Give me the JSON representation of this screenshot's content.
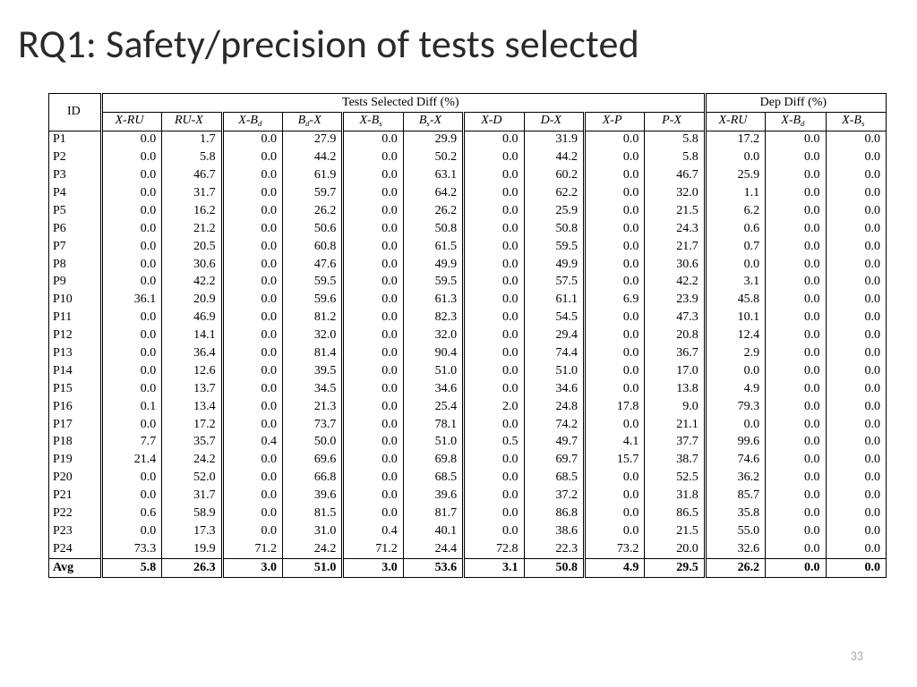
{
  "title": "RQ1: Safety/precision of tests selected",
  "page_number": "33",
  "table": {
    "type": "table",
    "header_group_1": "Tests Selected Diff (%)",
    "header_group_2": "Dep Diff (%)",
    "id_label": "ID",
    "avg_label": "Avg",
    "columns_tests": [
      "X-RU",
      "RU-X",
      "X-B_d",
      "B_d-X",
      "X-B_s",
      "B_s-X",
      "X-D",
      "D-X",
      "X-P",
      "P-X"
    ],
    "columns_dep": [
      "X-RU",
      "X-B_d",
      "X-B_s"
    ],
    "rows": [
      {
        "id": "P1",
        "v": [
          "0.0",
          "1.7",
          "0.0",
          "27.9",
          "0.0",
          "29.9",
          "0.0",
          "31.9",
          "0.0",
          "5.8",
          "17.2",
          "0.0",
          "0.0"
        ]
      },
      {
        "id": "P2",
        "v": [
          "0.0",
          "5.8",
          "0.0",
          "44.2",
          "0.0",
          "50.2",
          "0.0",
          "44.2",
          "0.0",
          "5.8",
          "0.0",
          "0.0",
          "0.0"
        ]
      },
      {
        "id": "P3",
        "v": [
          "0.0",
          "46.7",
          "0.0",
          "61.9",
          "0.0",
          "63.1",
          "0.0",
          "60.2",
          "0.0",
          "46.7",
          "25.9",
          "0.0",
          "0.0"
        ]
      },
      {
        "id": "P4",
        "v": [
          "0.0",
          "31.7",
          "0.0",
          "59.7",
          "0.0",
          "64.2",
          "0.0",
          "62.2",
          "0.0",
          "32.0",
          "1.1",
          "0.0",
          "0.0"
        ]
      },
      {
        "id": "P5",
        "v": [
          "0.0",
          "16.2",
          "0.0",
          "26.2",
          "0.0",
          "26.2",
          "0.0",
          "25.9",
          "0.0",
          "21.5",
          "6.2",
          "0.0",
          "0.0"
        ]
      },
      {
        "id": "P6",
        "v": [
          "0.0",
          "21.2",
          "0.0",
          "50.6",
          "0.0",
          "50.8",
          "0.0",
          "50.8",
          "0.0",
          "24.3",
          "0.6",
          "0.0",
          "0.0"
        ]
      },
      {
        "id": "P7",
        "v": [
          "0.0",
          "20.5",
          "0.0",
          "60.8",
          "0.0",
          "61.5",
          "0.0",
          "59.5",
          "0.0",
          "21.7",
          "0.7",
          "0.0",
          "0.0"
        ]
      },
      {
        "id": "P8",
        "v": [
          "0.0",
          "30.6",
          "0.0",
          "47.6",
          "0.0",
          "49.9",
          "0.0",
          "49.9",
          "0.0",
          "30.6",
          "0.0",
          "0.0",
          "0.0"
        ]
      },
      {
        "id": "P9",
        "v": [
          "0.0",
          "42.2",
          "0.0",
          "59.5",
          "0.0",
          "59.5",
          "0.0",
          "57.5",
          "0.0",
          "42.2",
          "3.1",
          "0.0",
          "0.0"
        ]
      },
      {
        "id": "P10",
        "v": [
          "36.1",
          "20.9",
          "0.0",
          "59.6",
          "0.0",
          "61.3",
          "0.0",
          "61.1",
          "6.9",
          "23.9",
          "45.8",
          "0.0",
          "0.0"
        ]
      },
      {
        "id": "P11",
        "v": [
          "0.0",
          "46.9",
          "0.0",
          "81.2",
          "0.0",
          "82.3",
          "0.0",
          "54.5",
          "0.0",
          "47.3",
          "10.1",
          "0.0",
          "0.0"
        ]
      },
      {
        "id": "P12",
        "v": [
          "0.0",
          "14.1",
          "0.0",
          "32.0",
          "0.0",
          "32.0",
          "0.0",
          "29.4",
          "0.0",
          "20.8",
          "12.4",
          "0.0",
          "0.0"
        ]
      },
      {
        "id": "P13",
        "v": [
          "0.0",
          "36.4",
          "0.0",
          "81.4",
          "0.0",
          "90.4",
          "0.0",
          "74.4",
          "0.0",
          "36.7",
          "2.9",
          "0.0",
          "0.0"
        ]
      },
      {
        "id": "P14",
        "v": [
          "0.0",
          "12.6",
          "0.0",
          "39.5",
          "0.0",
          "51.0",
          "0.0",
          "51.0",
          "0.0",
          "17.0",
          "0.0",
          "0.0",
          "0.0"
        ]
      },
      {
        "id": "P15",
        "v": [
          "0.0",
          "13.7",
          "0.0",
          "34.5",
          "0.0",
          "34.6",
          "0.0",
          "34.6",
          "0.0",
          "13.8",
          "4.9",
          "0.0",
          "0.0"
        ]
      },
      {
        "id": "P16",
        "v": [
          "0.1",
          "13.4",
          "0.0",
          "21.3",
          "0.0",
          "25.4",
          "2.0",
          "24.8",
          "17.8",
          "9.0",
          "79.3",
          "0.0",
          "0.0"
        ]
      },
      {
        "id": "P17",
        "v": [
          "0.0",
          "17.2",
          "0.0",
          "73.7",
          "0.0",
          "78.1",
          "0.0",
          "74.2",
          "0.0",
          "21.1",
          "0.0",
          "0.0",
          "0.0"
        ]
      },
      {
        "id": "P18",
        "v": [
          "7.7",
          "35.7",
          "0.4",
          "50.0",
          "0.0",
          "51.0",
          "0.5",
          "49.7",
          "4.1",
          "37.7",
          "99.6",
          "0.0",
          "0.0"
        ]
      },
      {
        "id": "P19",
        "v": [
          "21.4",
          "24.2",
          "0.0",
          "69.6",
          "0.0",
          "69.8",
          "0.0",
          "69.7",
          "15.7",
          "38.7",
          "74.6",
          "0.0",
          "0.0"
        ]
      },
      {
        "id": "P20",
        "v": [
          "0.0",
          "52.0",
          "0.0",
          "66.8",
          "0.0",
          "68.5",
          "0.0",
          "68.5",
          "0.0",
          "52.5",
          "36.2",
          "0.0",
          "0.0"
        ]
      },
      {
        "id": "P21",
        "v": [
          "0.0",
          "31.7",
          "0.0",
          "39.6",
          "0.0",
          "39.6",
          "0.0",
          "37.2",
          "0.0",
          "31.8",
          "85.7",
          "0.0",
          "0.0"
        ]
      },
      {
        "id": "P22",
        "v": [
          "0.6",
          "58.9",
          "0.0",
          "81.5",
          "0.0",
          "81.7",
          "0.0",
          "86.8",
          "0.0",
          "86.5",
          "35.8",
          "0.0",
          "0.0"
        ]
      },
      {
        "id": "P23",
        "v": [
          "0.0",
          "17.3",
          "0.0",
          "31.0",
          "0.4",
          "40.1",
          "0.0",
          "38.6",
          "0.0",
          "21.5",
          "55.0",
          "0.0",
          "0.0"
        ]
      },
      {
        "id": "P24",
        "v": [
          "73.3",
          "19.9",
          "71.2",
          "24.2",
          "71.2",
          "24.4",
          "72.8",
          "22.3",
          "73.2",
          "20.0",
          "32.6",
          "0.0",
          "0.0"
        ]
      }
    ],
    "avg": [
      "5.8",
      "26.3",
      "3.0",
      "51.0",
      "3.0",
      "53.6",
      "3.1",
      "50.8",
      "4.9",
      "29.5",
      "26.2",
      "0.0",
      "0.0"
    ]
  },
  "style": {
    "title_fontsize": 44,
    "table_fontsize": 14,
    "font_family_title": "Calibri Light",
    "font_family_table": "Times New Roman",
    "border_color": "#000000",
    "background_color": "#ffffff",
    "pagenum_color": "#a8a8a8"
  }
}
